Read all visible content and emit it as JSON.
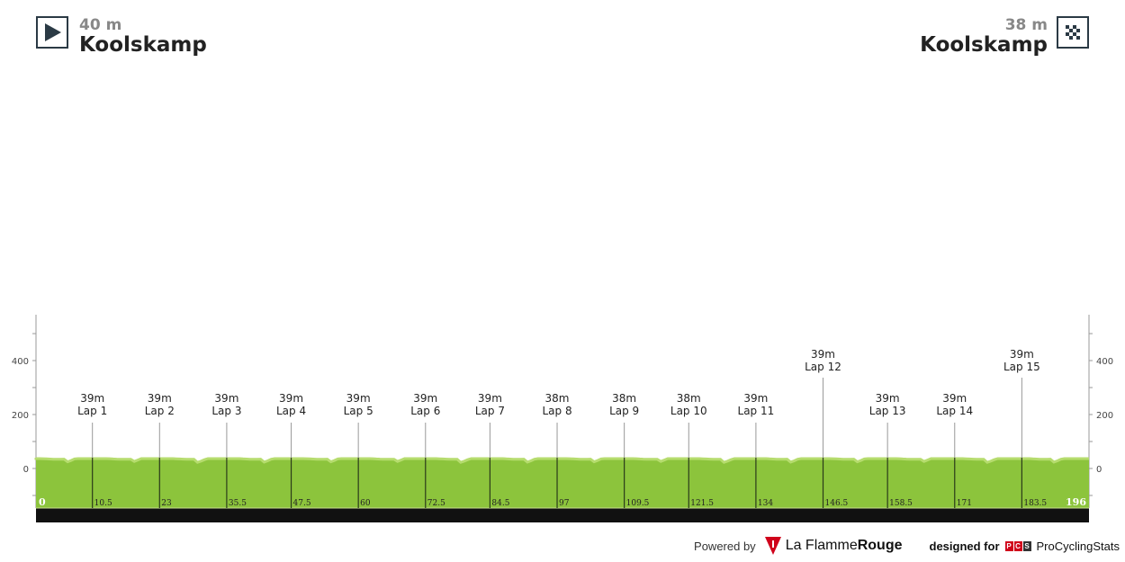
{
  "start": {
    "altitude": "40 m",
    "name": "Koolskamp",
    "icon": "start-flag-icon"
  },
  "finish": {
    "altitude": "38 m",
    "name": "Koolskamp",
    "icon": "checkered-flag-icon"
  },
  "footer": {
    "powered_by": "Powered by",
    "brand_light": "La Flamme",
    "brand_bold": "Rouge",
    "designed_for": "designed for",
    "pcs_letters": [
      "P",
      "C",
      "S"
    ],
    "pcs_name": "ProCyclingStats",
    "brand_color": "#d0021b"
  },
  "chart_data": {
    "type": "area",
    "xlim": [
      0,
      196
    ],
    "ylim": [
      -150,
      550
    ],
    "y_ticks": [
      0,
      200,
      400
    ],
    "x_start_label": "0",
    "x_end_label": "196",
    "profile_color": "#8cc43c",
    "profile_highlight": "#b6dc6e",
    "markers": [
      {
        "km": 10.5,
        "km_label": "10.5",
        "alt": "39m",
        "label": "Lap 1"
      },
      {
        "km": 23,
        "km_label": "23",
        "alt": "39m",
        "label": "Lap 2"
      },
      {
        "km": 35.5,
        "km_label": "35.5",
        "alt": "39m",
        "label": "Lap 3"
      },
      {
        "km": 47.5,
        "km_label": "47.5",
        "alt": "39m",
        "label": "Lap 4"
      },
      {
        "km": 60,
        "km_label": "60",
        "alt": "39m",
        "label": "Lap 5"
      },
      {
        "km": 72.5,
        "km_label": "72.5",
        "alt": "39m",
        "label": "Lap 6"
      },
      {
        "km": 84.5,
        "km_label": "84.5",
        "alt": "39m",
        "label": "Lap 7"
      },
      {
        "km": 97,
        "km_label": "97",
        "alt": "38m",
        "label": "Lap 8"
      },
      {
        "km": 109.5,
        "km_label": "109.5",
        "alt": "38m",
        "label": "Lap 9"
      },
      {
        "km": 121.5,
        "km_label": "121.5",
        "alt": "38m",
        "label": "Lap 10"
      },
      {
        "km": 134,
        "km_label": "134",
        "alt": "39m",
        "label": "Lap 11"
      },
      {
        "km": 146.5,
        "km_label": "146.5",
        "alt": "39m",
        "label": "Lap 12",
        "high": true
      },
      {
        "km": 158.5,
        "km_label": "158.5",
        "alt": "39m",
        "label": "Lap 13"
      },
      {
        "km": 171,
        "km_label": "171",
        "alt": "39m",
        "label": "Lap 14"
      },
      {
        "km": 183.5,
        "km_label": "183.5",
        "alt": "39m",
        "label": "Lap 15",
        "high": true
      }
    ]
  }
}
